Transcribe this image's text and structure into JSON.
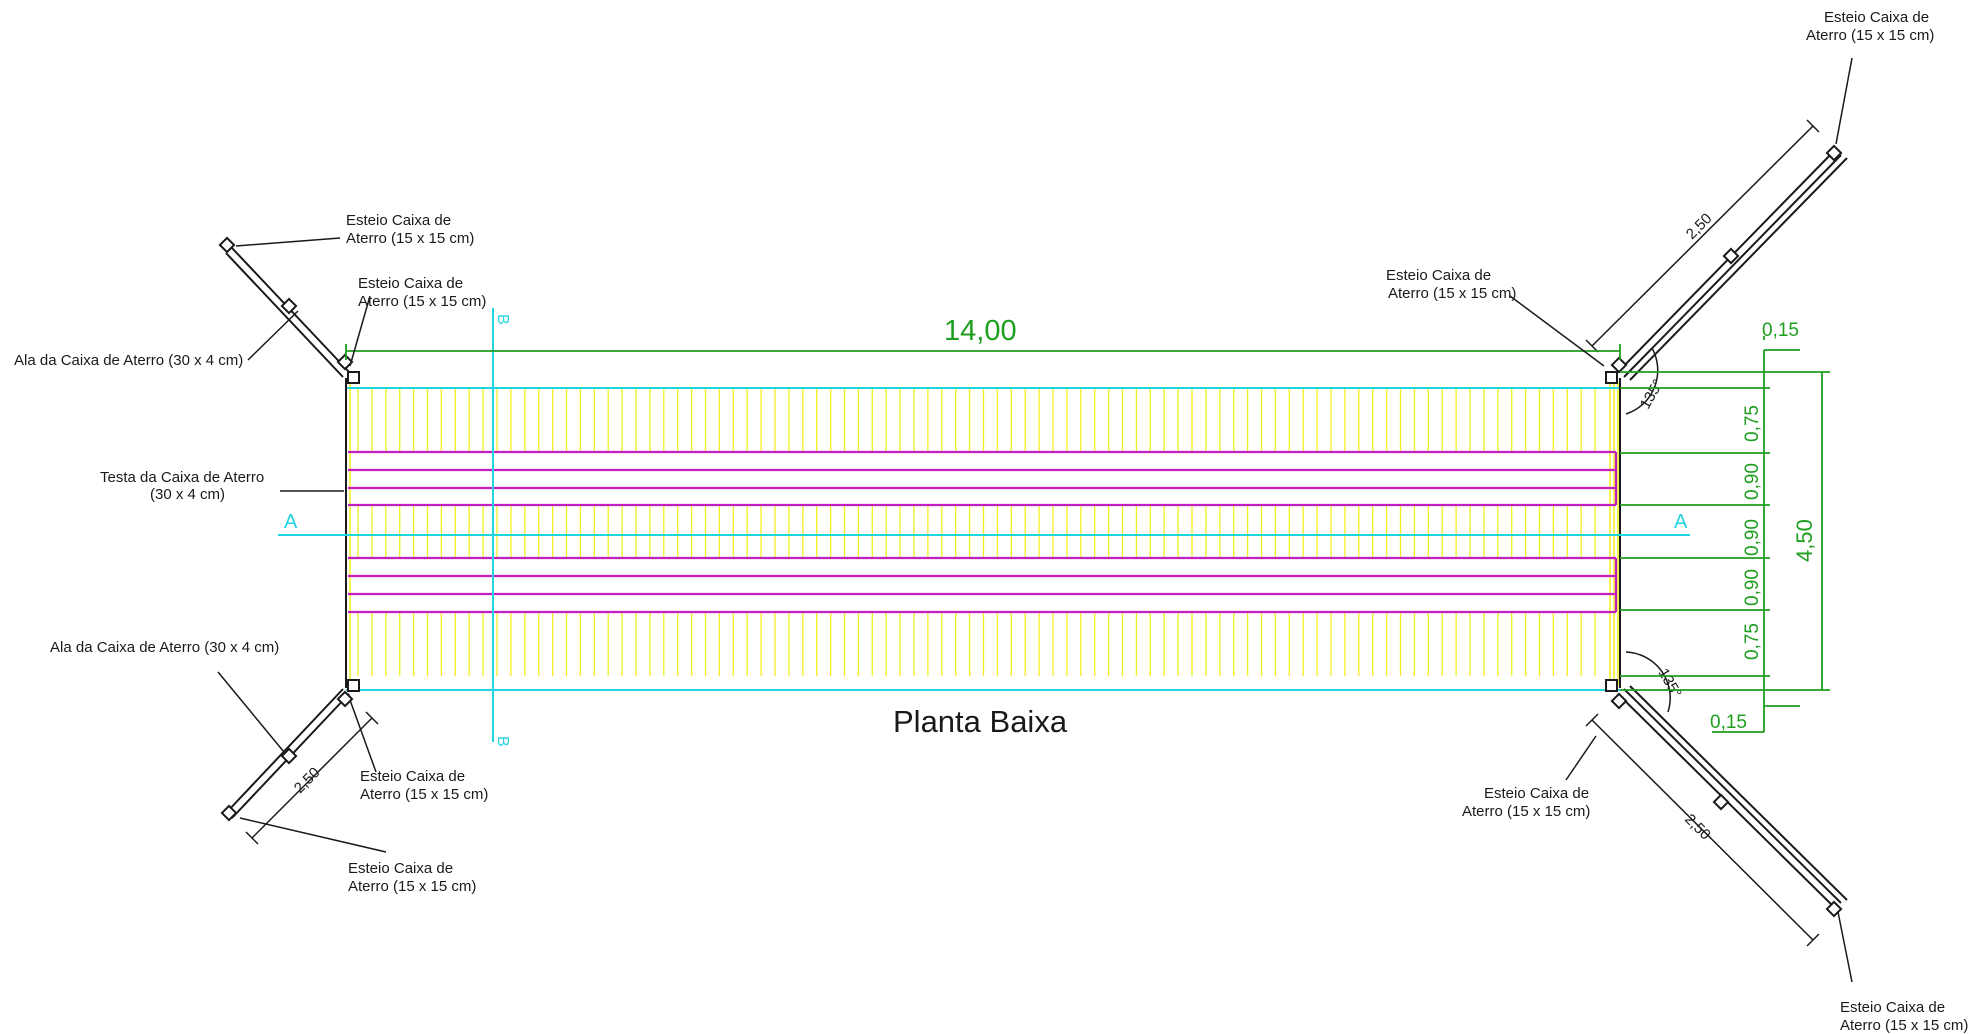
{
  "drawing": {
    "title": "Planta Baixa",
    "labels": {
      "esteio_line1": "Esteio Caixa de",
      "esteio_line2": "Aterro (15 x 15 cm)",
      "ala": "Ala da Caixa de Aterro (30 x 4 cm)",
      "testa_line1": "Testa da Caixa de Aterro",
      "testa_line2": "(30 x 4 cm)"
    },
    "dimensions": {
      "length": "14,00",
      "width": "4,50",
      "offset": "0,15",
      "wing": "2,50",
      "angle": "135°",
      "segments": [
        "0,75",
        "0,90",
        "0,90",
        "0,90",
        "0,75"
      ]
    },
    "section_marks": {
      "a": "A",
      "b": "B"
    },
    "colors": {
      "deck_planks": "#f2ef1f",
      "longitudinal_beams": "#c21ec2",
      "section_lines": "#22d3e0",
      "dimensions": "#1e9e1e",
      "structure": "#1a1a1a"
    }
  }
}
